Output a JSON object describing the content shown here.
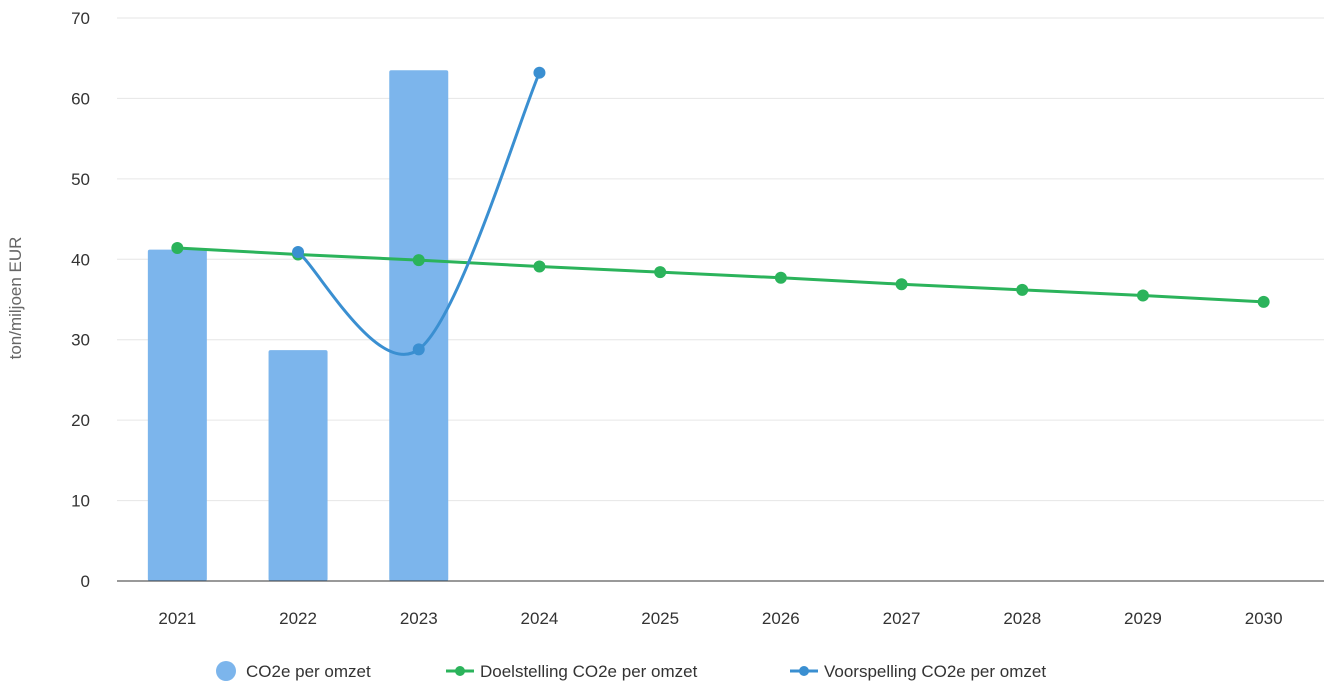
{
  "chart_data": {
    "type": "bar",
    "categories": [
      "2021",
      "2022",
      "2023",
      "2024",
      "2025",
      "2026",
      "2027",
      "2028",
      "2029",
      "2030"
    ],
    "ylabel": "ton/miljoen EUR",
    "xlabel": "",
    "ylim": [
      0,
      70
    ],
    "yticks": [
      0,
      10,
      20,
      30,
      40,
      50,
      60,
      70
    ],
    "grid": true,
    "legend_position": "bottom",
    "series": [
      {
        "name": "CO2e per omzet",
        "type": "bar",
        "color": "#7cb5ec",
        "values": [
          41.2,
          28.7,
          63.5,
          null,
          null,
          null,
          null,
          null,
          null,
          null
        ]
      },
      {
        "name": "Doelstelling CO2e per omzet",
        "type": "line",
        "color": "#2bb35b",
        "values": [
          41.4,
          40.6,
          39.9,
          39.1,
          38.4,
          37.7,
          36.9,
          36.2,
          35.5,
          34.7
        ]
      },
      {
        "name": "Voorspelling CO2e per omzet",
        "type": "spline",
        "color": "#3a8fd1",
        "values": [
          null,
          40.9,
          28.8,
          63.2,
          null,
          null,
          null,
          null,
          null,
          null
        ]
      }
    ]
  }
}
